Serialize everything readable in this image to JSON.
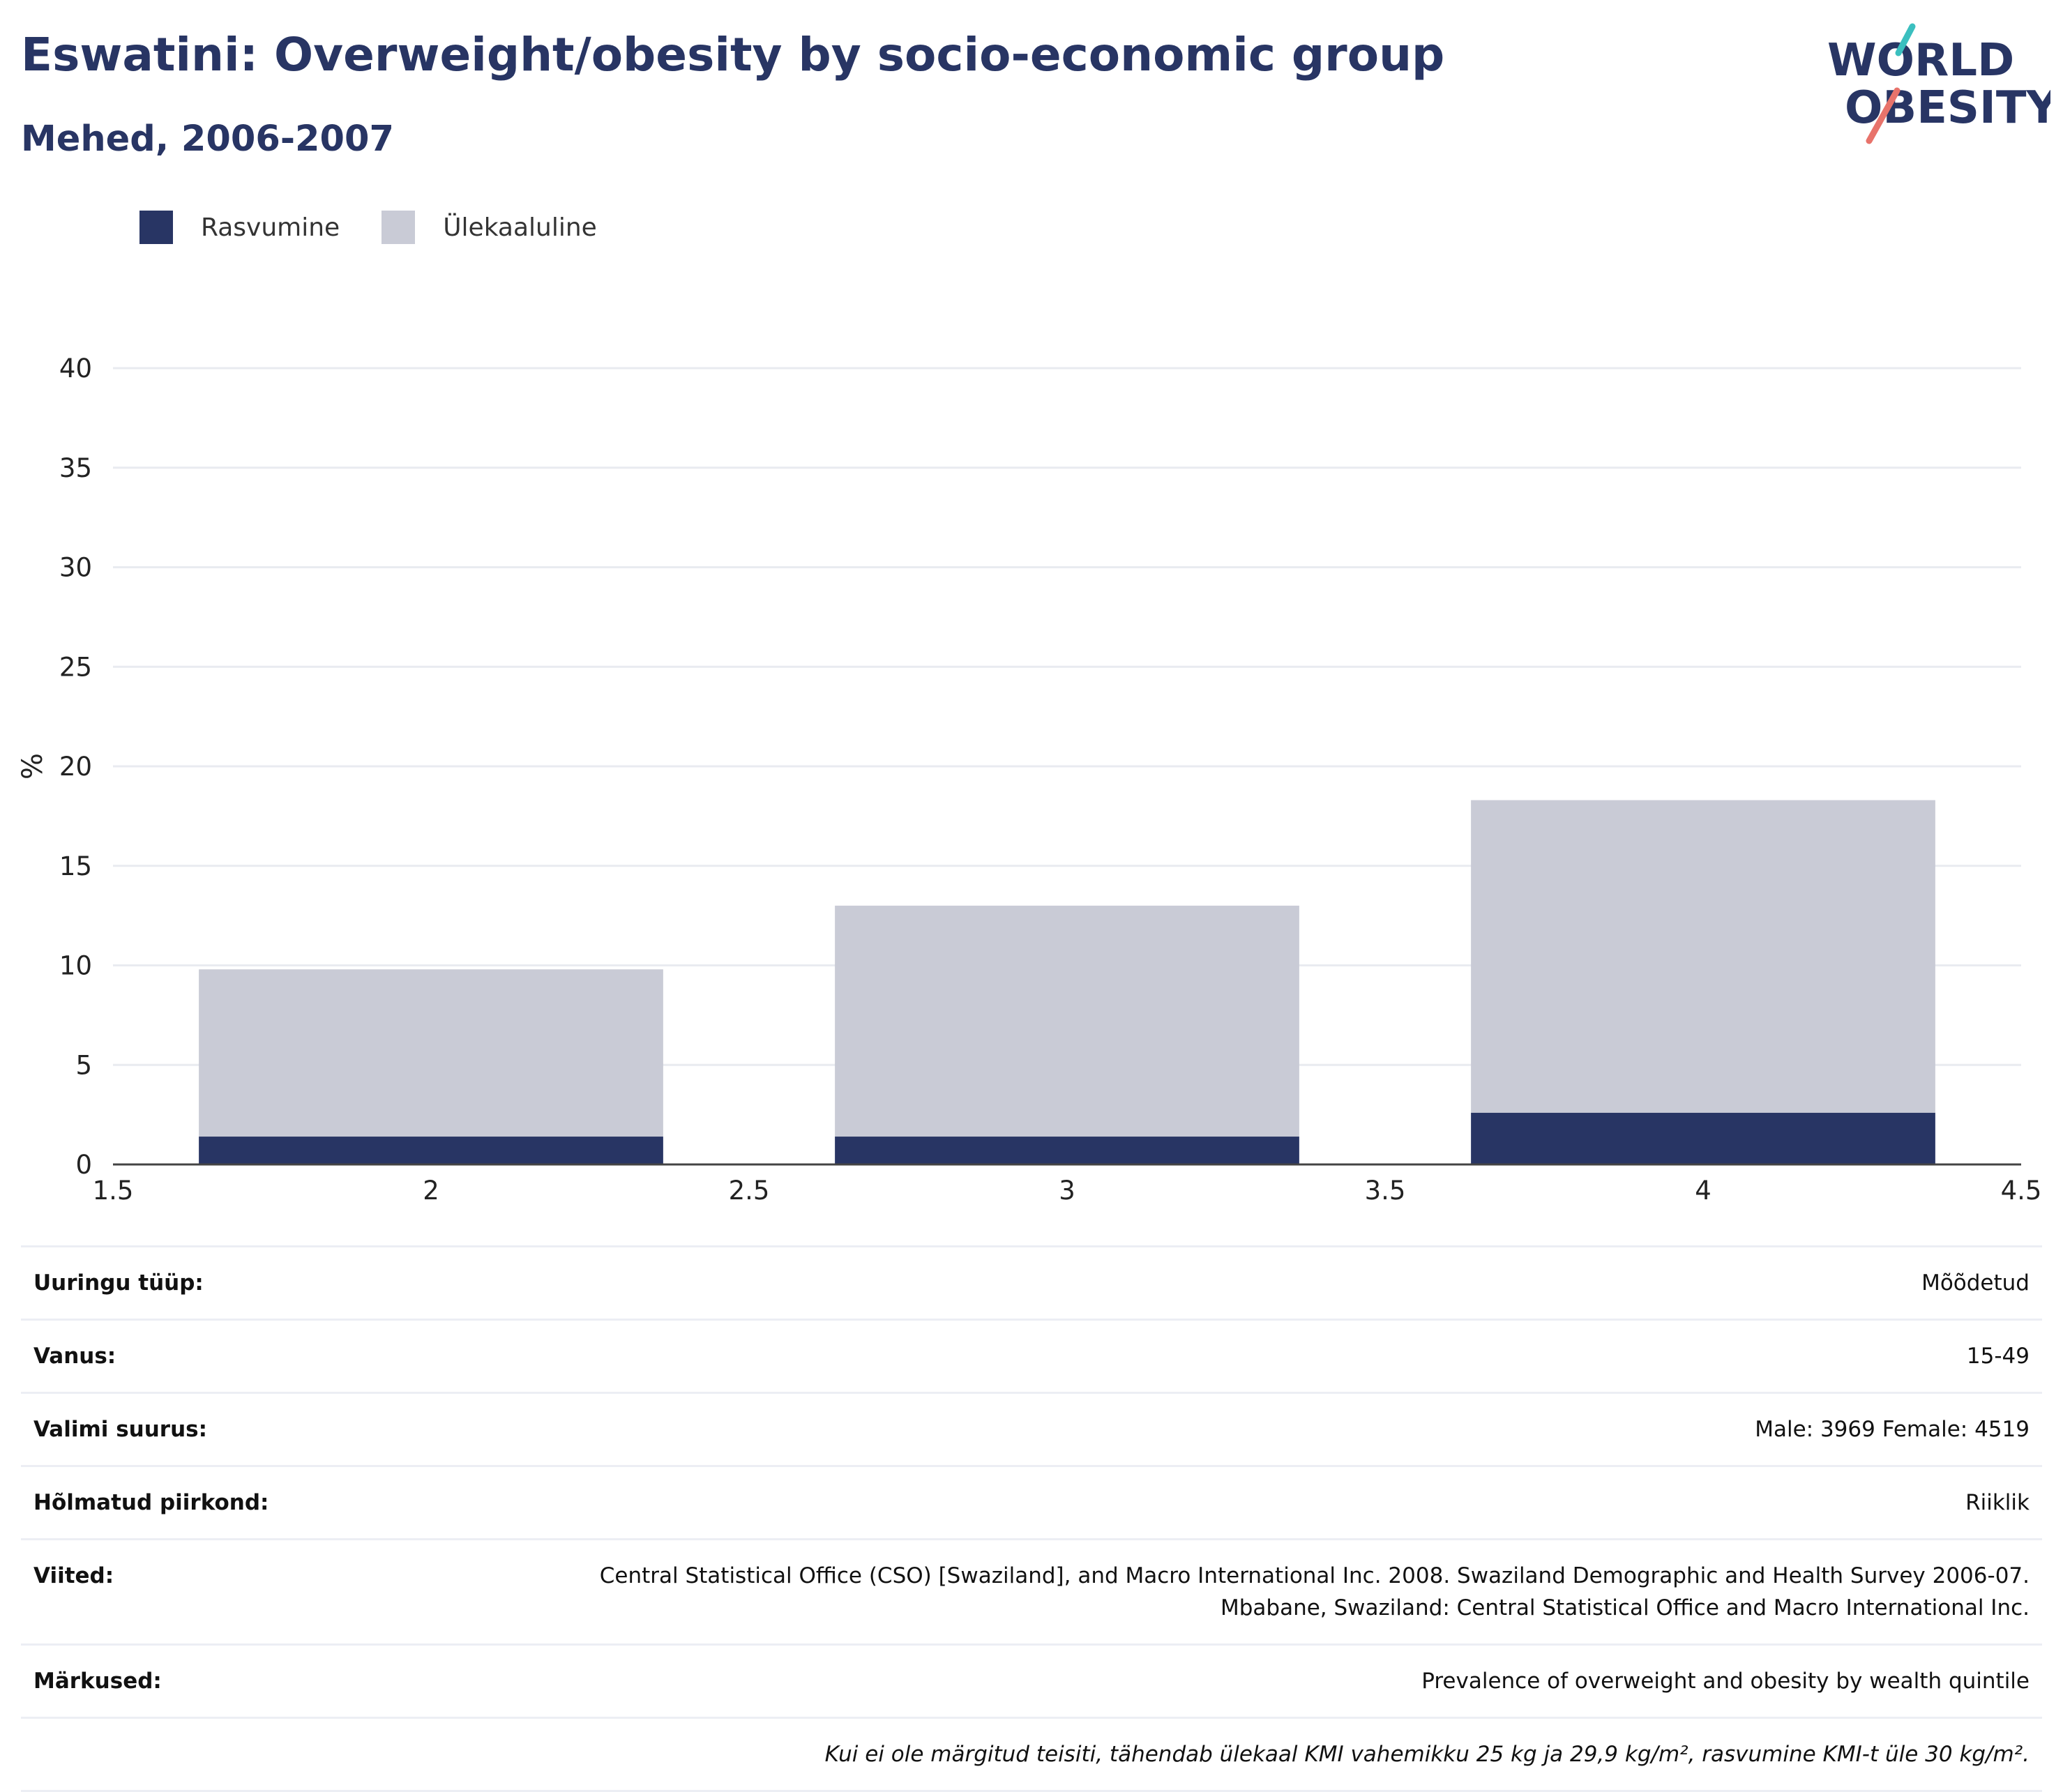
{
  "header": {
    "title": "Eswatini: Overweight/obesity by socio-economic group",
    "subtitle": "Mehed, 2006-2007"
  },
  "logo": {
    "line1": "WORLD",
    "line2": "OBESITY"
  },
  "legend": [
    {
      "label": "Rasvumine",
      "color": "#283564"
    },
    {
      "label": "Ülekaaluline",
      "color": "#c9cbd6"
    }
  ],
  "chart_data": {
    "type": "bar",
    "stacked": true,
    "x": [
      2,
      3,
      4
    ],
    "series": [
      {
        "name": "Rasvumine",
        "color": "#283564",
        "values": [
          1.4,
          1.4,
          2.6
        ]
      },
      {
        "name": "Ülekaaluline",
        "color": "#c9cbd6",
        "values": [
          8.4,
          11.6,
          15.7
        ]
      }
    ],
    "ylabel": "%",
    "xlim": [
      1.5,
      4.5
    ],
    "ylim": [
      0,
      40
    ],
    "xticks": [
      "1.5",
      "2",
      "2.5",
      "3",
      "3.5",
      "4",
      "4.5"
    ],
    "yticks": [
      "0",
      "5",
      "10",
      "15",
      "20",
      "25",
      "30",
      "35",
      "40"
    ],
    "grid": true
  },
  "meta": {
    "rows": [
      {
        "label": "Uuringu tüüp:",
        "value": "Mõõdetud"
      },
      {
        "label": "Vanus:",
        "value": "15-49"
      },
      {
        "label": "Valimi suurus:",
        "value": "Male: 3969 Female: 4519"
      },
      {
        "label": "Hõlmatud piirkond:",
        "value": "Riiklik"
      },
      {
        "label": "Viited:",
        "value_lines": [
          "Central Statistical Office (CSO) [Swaziland], and Macro International Inc. 2008. Swaziland Demographic and Health Survey 2006-07.",
          "Mbabane, Swaziland: Central Statistical Office and Macro International Inc."
        ]
      },
      {
        "label": "Märkused:",
        "value": "Prevalence of overweight and obesity by wealth quintile"
      }
    ],
    "note": "Kui ei ole märgitud teisiti, tähendab ülekaal KMI vahemikku 25 kg ja 29,9 kg/m², rasvumine KMI-t üle 30 kg/m²."
  }
}
